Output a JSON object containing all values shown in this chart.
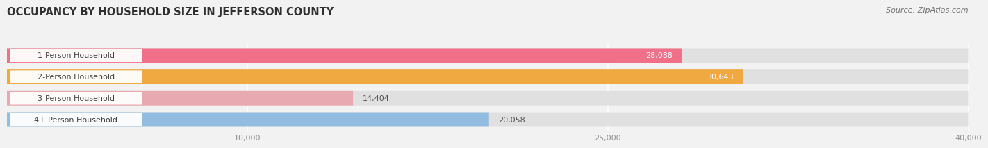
{
  "title": "OCCUPANCY BY HOUSEHOLD SIZE IN JEFFERSON COUNTY",
  "source": "Source: ZipAtlas.com",
  "categories": [
    "1-Person Household",
    "2-Person Household",
    "3-Person Household",
    "4+ Person Household"
  ],
  "values": [
    28088,
    30643,
    14404,
    20058
  ],
  "bar_colors": [
    "#f0708a",
    "#f0a840",
    "#e8aab0",
    "#92bce0"
  ],
  "xlim": [
    0,
    40000
  ],
  "xticks": [
    10000,
    25000,
    40000
  ],
  "xtick_labels": [
    "10,000",
    "25,000",
    "40,000"
  ],
  "background_color": "#f2f2f2",
  "bar_background_color": "#e0e0e0",
  "title_fontsize": 10.5,
  "label_fontsize": 8,
  "value_fontsize": 8,
  "source_fontsize": 8
}
